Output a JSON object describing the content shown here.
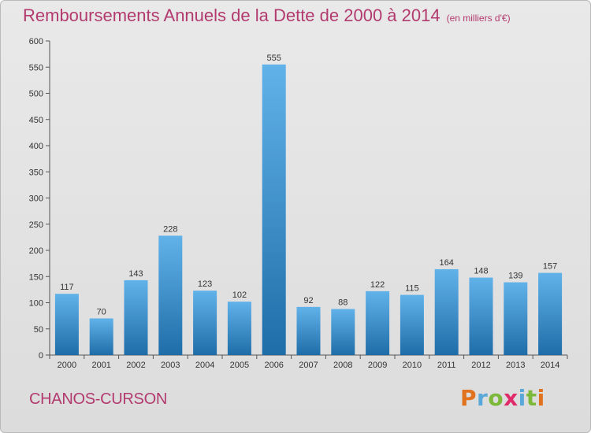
{
  "title": "Remboursements Annuels de la Dette de 2000 à 2014",
  "unit_label": "(en milliers d'€)",
  "commune": "CHANOS-CURSON",
  "logo": {
    "letters": [
      "P",
      "r",
      "o",
      "x",
      "i",
      "t",
      "i"
    ],
    "colors": [
      "#e2731e",
      "#5aa8da",
      "#7cb93a",
      "#e12a6a",
      "#5aa8da",
      "#7cb93a",
      "#e2731e"
    ]
  },
  "colors": {
    "bar_light": "#62b2ea",
    "bar_dark": "#1e6da8",
    "title": "#b23a6e"
  },
  "chart_data": {
    "type": "bar",
    "categories": [
      "2000",
      "2001",
      "2002",
      "2003",
      "2004",
      "2005",
      "2006",
      "2007",
      "2008",
      "2009",
      "2010",
      "2011",
      "2012",
      "2013",
      "2014"
    ],
    "values": [
      117,
      70,
      143,
      228,
      123,
      102,
      555,
      92,
      88,
      122,
      115,
      164,
      148,
      139,
      157
    ],
    "ylim": [
      0,
      600
    ],
    "yticks": [
      0,
      50,
      100,
      150,
      200,
      250,
      300,
      350,
      400,
      450,
      500,
      550,
      600
    ],
    "grid": false
  }
}
